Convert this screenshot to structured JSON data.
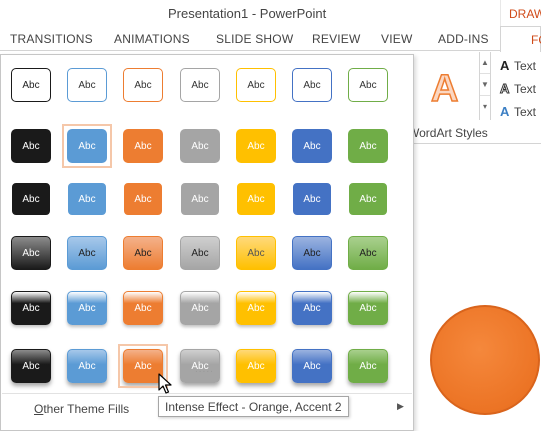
{
  "window": {
    "title": "Presentation1 - PowerPoint",
    "context_tab": "DRAW"
  },
  "tabs": [
    {
      "label": "TRANSITIONS"
    },
    {
      "label": "ANIMATIONS"
    },
    {
      "label": "SLIDE SHOW"
    },
    {
      "label": "REVIEW"
    },
    {
      "label": "VIEW"
    },
    {
      "label": "ADD-INS"
    }
  ],
  "active_tab": {
    "label": "FO"
  },
  "ribbon": {
    "wordart_glyph": "A",
    "wordart_group_label": "WordArt Styles",
    "text_commands": [
      {
        "glyph": "A",
        "label": "Text"
      },
      {
        "glyph": "A",
        "label": "Text"
      },
      {
        "glyph": "A",
        "label": "Text"
      }
    ]
  },
  "gallery": {
    "swatch_label": "Abc",
    "rows": [
      {
        "style": "Colored Outline"
      },
      {
        "style": "Colored Fill"
      },
      {
        "style": "Light Fill"
      },
      {
        "style": "Semitransparent"
      },
      {
        "style": "Subtle Effect"
      },
      {
        "style": "Intense Effect"
      }
    ],
    "theme_colors": [
      "#1a1a1a",
      "#5b9bd5",
      "#ed7d31",
      "#a5a5a5",
      "#ffc000",
      "#4472c4",
      "#70ad47"
    ],
    "hovered": {
      "row": 5,
      "col": 2
    },
    "selected": {
      "row": 1,
      "col": 1
    },
    "footer_label_underlined": "O",
    "footer_label_rest": "ther Theme Fills",
    "grip": "....."
  },
  "tooltip": "Intense Effect - Orange, Accent 2"
}
